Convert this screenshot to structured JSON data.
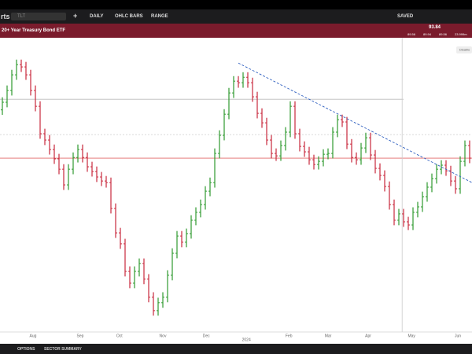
{
  "toolbar": {
    "brand": "rts",
    "search": "TLT",
    "interval": "DAILY",
    "style": "OHLC BARS",
    "range": "RANGE",
    "saved": "SAVED"
  },
  "header": {
    "price": "93.84",
    "stats": [
      "89.56",
      "89.94",
      "89.56",
      "23.999m"
    ]
  },
  "chart_data": {
    "type": "ohlc",
    "title": "20+ Year Treasury Bond ETF",
    "open": [
      97.2,
      97.73,
      98.55,
      99.64,
      100.35,
      100.19,
      99.64,
      98.55,
      97.45,
      95.54,
      95.1,
      94.44,
      93.79,
      93.07,
      91.98,
      93.07,
      93.89,
      94.44,
      93.89,
      93.24,
      92.91,
      92.53,
      92.25,
      92.14,
      90.34,
      88.64,
      87.88,
      85.96,
      85.14,
      85.96,
      86.51,
      85.42,
      84.16,
      83.23,
      83.78,
      84.16,
      85.69,
      87.22,
      88.42,
      87.99,
      88.59,
      89.52,
      90.07,
      90.61,
      91.54,
      92.14,
      94.17,
      95.43,
      96.9,
      98.38,
      99.2,
      99.09,
      99.47,
      99.09,
      98.11,
      96.96,
      96.3,
      95.1,
      94.17,
      94.0,
      94.72,
      95.65,
      97.45,
      95.54,
      94.66,
      94.28,
      93.73,
      93.4,
      93.62,
      94.11,
      94.17,
      95.65,
      96.52,
      96.36,
      94.82,
      93.89,
      93.73,
      94.55,
      95.26,
      94.06,
      93.13,
      92.64,
      91.87,
      90.61,
      89.52,
      89.96,
      89.41,
      89.19,
      90.07,
      90.45,
      91.16,
      91.82,
      92.42,
      93.07,
      93.35,
      92.96,
      92.25,
      91.71,
      93.62,
      94.72
    ],
    "high": [
      98.08,
      98.9,
      99.99,
      100.7,
      100.7,
      100.54,
      99.99,
      98.9,
      97.8,
      95.89,
      95.45,
      94.79,
      94.14,
      93.42,
      93.42,
      94.24,
      94.79,
      94.79,
      94.24,
      93.59,
      93.26,
      92.88,
      92.6,
      92.49,
      90.69,
      88.99,
      88.23,
      86.31,
      86.31,
      86.86,
      86.86,
      85.77,
      84.51,
      84.13,
      84.51,
      86.04,
      87.57,
      88.77,
      88.77,
      88.94,
      89.87,
      90.42,
      90.96,
      91.89,
      92.49,
      94.52,
      95.78,
      97.25,
      98.73,
      99.55,
      99.55,
      99.82,
      99.82,
      99.44,
      98.46,
      97.31,
      96.65,
      95.45,
      94.52,
      95.07,
      96.0,
      97.8,
      97.8,
      95.89,
      95.01,
      94.63,
      94.08,
      93.97,
      94.46,
      94.52,
      96.0,
      96.87,
      96.87,
      96.71,
      95.17,
      94.24,
      94.9,
      95.61,
      95.61,
      94.41,
      93.48,
      92.99,
      92.22,
      90.96,
      90.31,
      90.31,
      89.76,
      90.42,
      90.8,
      91.51,
      92.17,
      92.77,
      93.42,
      93.7,
      93.7,
      93.31,
      92.6,
      93.97,
      95.07,
      95.07
    ],
    "low": [
      96.85,
      97.38,
      98.2,
      99.29,
      99.84,
      99.29,
      98.2,
      97.1,
      95.19,
      94.75,
      94.09,
      93.44,
      92.72,
      91.63,
      91.63,
      92.72,
      93.54,
      93.54,
      92.89,
      92.56,
      92.18,
      91.9,
      91.79,
      89.99,
      88.29,
      87.53,
      85.61,
      84.79,
      84.79,
      85.61,
      85.07,
      83.81,
      82.88,
      82.88,
      83.43,
      83.81,
      85.34,
      86.87,
      87.64,
      87.64,
      88.24,
      89.17,
      89.72,
      90.26,
      91.19,
      91.79,
      93.82,
      95.08,
      96.55,
      98.03,
      98.74,
      98.74,
      98.74,
      97.76,
      96.61,
      95.95,
      94.75,
      93.82,
      93.65,
      93.65,
      94.37,
      95.3,
      95.19,
      94.31,
      93.93,
      93.38,
      93.05,
      93.05,
      93.27,
      93.76,
      93.82,
      95.3,
      96.01,
      94.47,
      93.54,
      93.38,
      93.38,
      94.2,
      93.71,
      92.78,
      92.29,
      91.52,
      90.26,
      89.17,
      89.17,
      89.06,
      88.84,
      88.84,
      89.72,
      90.1,
      90.81,
      91.47,
      92.07,
      92.72,
      92.61,
      91.9,
      91.36,
      91.36,
      93.27,
      93.49
    ],
    "close": [
      97.73,
      98.55,
      99.64,
      100.35,
      100.19,
      99.64,
      98.55,
      97.45,
      95.54,
      95.1,
      94.44,
      93.79,
      93.07,
      91.98,
      93.07,
      93.89,
      94.44,
      93.89,
      93.24,
      92.91,
      92.53,
      92.25,
      92.14,
      90.34,
      88.64,
      87.88,
      85.96,
      85.14,
      85.96,
      86.51,
      85.42,
      84.16,
      83.23,
      83.78,
      84.16,
      85.69,
      87.22,
      88.42,
      87.99,
      88.59,
      89.52,
      90.07,
      90.61,
      91.54,
      92.14,
      94.17,
      95.43,
      96.9,
      98.38,
      99.2,
      99.09,
      99.47,
      99.09,
      98.11,
      96.96,
      96.3,
      95.1,
      94.17,
      94.0,
      94.72,
      95.65,
      97.45,
      95.54,
      94.66,
      94.28,
      93.73,
      93.4,
      93.62,
      94.11,
      94.17,
      95.65,
      96.52,
      96.36,
      94.82,
      93.89,
      93.73,
      94.55,
      95.26,
      94.06,
      93.13,
      92.64,
      91.87,
      90.61,
      89.52,
      89.96,
      89.41,
      89.19,
      90.07,
      90.45,
      91.16,
      91.82,
      92.42,
      93.07,
      93.35,
      92.96,
      92.25,
      91.71,
      93.62,
      94.72,
      93.84
    ],
    "up_color": "#2e9a2e",
    "down_color": "#c8283c",
    "xlim": [
      -0.5,
      99.5
    ],
    "ylim": [
      81.58,
      102.11
    ],
    "xticks": [
      {
        "value": 6.5,
        "label": "Aug"
      },
      {
        "value": 16.5,
        "label": "Sep"
      },
      {
        "value": 24.8,
        "label": "Oct"
      },
      {
        "value": 34,
        "label": "Nov"
      },
      {
        "value": 43.2,
        "label": "Dec"
      },
      {
        "value": 60.7,
        "label": "Feb"
      },
      {
        "value": 69,
        "label": "Mar"
      },
      {
        "value": 77.5,
        "label": "Apr"
      },
      {
        "value": 86.7,
        "label": "May"
      },
      {
        "value": 96.5,
        "label": "Jun"
      }
    ],
    "year_ticks": [
      {
        "value": 51.7,
        "label": "2024"
      }
    ],
    "hlines": [
      {
        "value": 97.94,
        "color": "#bbbbbb",
        "dash": "none",
        "x_end": 85
      },
      {
        "value": 95.48,
        "color": "#cccccc",
        "dash": "2 2",
        "x_end": 99.5
      },
      {
        "value": 93.84,
        "color": "#e06666",
        "dash": "none",
        "x_end": 99.5
      }
    ],
    "vline": 84.7,
    "trendline": {
      "x": [
        50,
        99.5
      ],
      "y": [
        100.46,
        92.14
      ],
      "color": "#3060c0"
    },
    "button": "Disable"
  },
  "footer": {
    "tabs": [
      "OPTIONS",
      "SECTOR SUMMARY"
    ]
  }
}
